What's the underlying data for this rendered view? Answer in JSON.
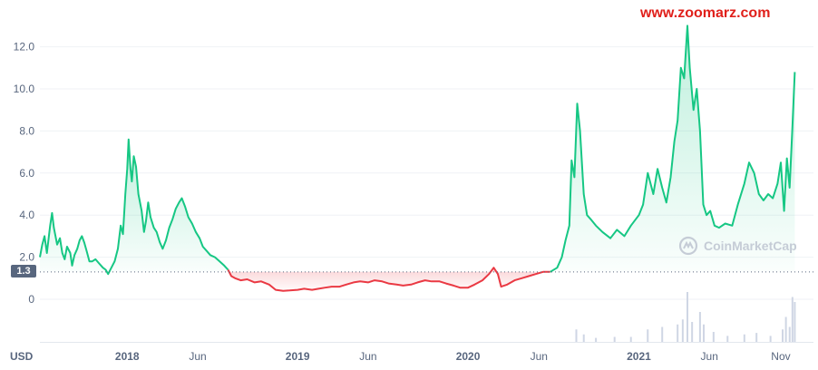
{
  "watermark": "www.zoomarz.com",
  "brand": {
    "name": "CoinMarketCap"
  },
  "currency_label": "USD",
  "reference_badge": "1.3",
  "colors": {
    "up": "#16c784",
    "down": "#ea3943",
    "up_fill": "#16c784",
    "grid": "#eff2f5",
    "ref_line": "#58667e",
    "volume": "#cfd6e4"
  },
  "chart_data": {
    "type": "area",
    "title": "",
    "xlabel": "",
    "ylabel": "",
    "ylim": [
      -2,
      13.5
    ],
    "y_ticks": [
      "0",
      "2.0",
      "4.0",
      "6.0",
      "8.0",
      "10.0",
      "12.0"
    ],
    "y_tick_values": [
      0,
      2,
      4,
      6,
      8,
      10,
      12
    ],
    "x_ticks": [
      {
        "label": "2018",
        "date": "2018-01-01",
        "major": true
      },
      {
        "label": "Jun",
        "date": "2018-06-01",
        "major": false
      },
      {
        "label": "2019",
        "date": "2019-01-01",
        "major": true
      },
      {
        "label": "Jun",
        "date": "2019-06-01",
        "major": false
      },
      {
        "label": "2020",
        "date": "2020-01-01",
        "major": true
      },
      {
        "label": "Jun",
        "date": "2020-06-01",
        "major": false
      },
      {
        "label": "2021",
        "date": "2021-01-01",
        "major": true
      },
      {
        "label": "Jun",
        "date": "2021-06-01",
        "major": false
      },
      {
        "label": "Nov",
        "date": "2021-11-01",
        "major": false
      }
    ],
    "xlim": [
      "2017-06-28",
      "2022-01-10"
    ],
    "reference_value": 1.3,
    "grid": true,
    "series": [
      {
        "points": [
          [
            "2017-06-28",
            2.0
          ],
          [
            "2017-07-03",
            2.6
          ],
          [
            "2017-07-08",
            3.0
          ],
          [
            "2017-07-13",
            2.2
          ],
          [
            "2017-07-20",
            3.5
          ],
          [
            "2017-07-24",
            4.1
          ],
          [
            "2017-07-28",
            3.4
          ],
          [
            "2017-08-04",
            2.6
          ],
          [
            "2017-08-10",
            2.9
          ],
          [
            "2017-08-15",
            2.2
          ],
          [
            "2017-08-20",
            1.9
          ],
          [
            "2017-08-25",
            2.5
          ],
          [
            "2017-09-01",
            2.2
          ],
          [
            "2017-09-05",
            1.6
          ],
          [
            "2017-09-10",
            2.1
          ],
          [
            "2017-09-16",
            2.4
          ],
          [
            "2017-09-21",
            2.8
          ],
          [
            "2017-09-26",
            3.0
          ],
          [
            "2017-10-01",
            2.7
          ],
          [
            "2017-10-06",
            2.3
          ],
          [
            "2017-10-12",
            1.8
          ],
          [
            "2017-10-18",
            1.8
          ],
          [
            "2017-10-25",
            1.9
          ],
          [
            "2017-11-02",
            1.7
          ],
          [
            "2017-11-10",
            1.5
          ],
          [
            "2017-11-16",
            1.4
          ],
          [
            "2017-11-21",
            1.2
          ],
          [
            "2017-11-28",
            1.5
          ],
          [
            "2017-12-05",
            1.8
          ],
          [
            "2017-12-12",
            2.4
          ],
          [
            "2017-12-18",
            3.5
          ],
          [
            "2017-12-23",
            3.1
          ],
          [
            "2017-12-28",
            5.0
          ],
          [
            "2018-01-01",
            6.2
          ],
          [
            "2018-01-04",
            7.6
          ],
          [
            "2018-01-08",
            6.2
          ],
          [
            "2018-01-11",
            5.6
          ],
          [
            "2018-01-15",
            6.8
          ],
          [
            "2018-01-20",
            6.3
          ],
          [
            "2018-01-25",
            5.0
          ],
          [
            "2018-02-01",
            4.2
          ],
          [
            "2018-02-06",
            3.2
          ],
          [
            "2018-02-10",
            3.7
          ],
          [
            "2018-02-15",
            4.6
          ],
          [
            "2018-02-20",
            3.9
          ],
          [
            "2018-02-27",
            3.4
          ],
          [
            "2018-03-05",
            3.2
          ],
          [
            "2018-03-12",
            2.7
          ],
          [
            "2018-03-18",
            2.4
          ],
          [
            "2018-03-25",
            2.8
          ],
          [
            "2018-04-01",
            3.4
          ],
          [
            "2018-04-08",
            3.8
          ],
          [
            "2018-04-15",
            4.3
          ],
          [
            "2018-04-22",
            4.6
          ],
          [
            "2018-04-28",
            4.8
          ],
          [
            "2018-05-05",
            4.4
          ],
          [
            "2018-05-12",
            3.9
          ],
          [
            "2018-05-20",
            3.6
          ],
          [
            "2018-05-28",
            3.2
          ],
          [
            "2018-06-05",
            2.9
          ],
          [
            "2018-06-12",
            2.5
          ],
          [
            "2018-06-20",
            2.3
          ],
          [
            "2018-06-28",
            2.1
          ],
          [
            "2018-07-08",
            2.0
          ],
          [
            "2018-07-18",
            1.8
          ],
          [
            "2018-07-28",
            1.6
          ],
          [
            "2018-08-05",
            1.4
          ]
        ],
        "color": "up"
      },
      {
        "points": [
          [
            "2018-08-05",
            1.4
          ],
          [
            "2018-08-12",
            1.1
          ],
          [
            "2018-08-20",
            1.0
          ],
          [
            "2018-09-01",
            0.9
          ],
          [
            "2018-09-15",
            0.95
          ],
          [
            "2018-10-01",
            0.8
          ],
          [
            "2018-10-15",
            0.85
          ],
          [
            "2018-11-01",
            0.7
          ],
          [
            "2018-11-15",
            0.45
          ],
          [
            "2018-12-01",
            0.4
          ],
          [
            "2018-12-15",
            0.42
          ],
          [
            "2019-01-01",
            0.45
          ],
          [
            "2019-01-15",
            0.5
          ],
          [
            "2019-02-01",
            0.45
          ],
          [
            "2019-02-15",
            0.5
          ],
          [
            "2019-03-01",
            0.55
          ],
          [
            "2019-03-15",
            0.6
          ],
          [
            "2019-04-01",
            0.6
          ],
          [
            "2019-04-15",
            0.7
          ],
          [
            "2019-05-01",
            0.8
          ],
          [
            "2019-05-15",
            0.85
          ],
          [
            "2019-06-01",
            0.8
          ],
          [
            "2019-06-15",
            0.9
          ],
          [
            "2019-07-01",
            0.85
          ],
          [
            "2019-07-15",
            0.75
          ],
          [
            "2019-08-01",
            0.7
          ],
          [
            "2019-08-15",
            0.65
          ],
          [
            "2019-09-01",
            0.7
          ],
          [
            "2019-09-15",
            0.8
          ],
          [
            "2019-10-01",
            0.9
          ],
          [
            "2019-10-15",
            0.85
          ],
          [
            "2019-11-01",
            0.85
          ],
          [
            "2019-11-15",
            0.75
          ],
          [
            "2019-12-01",
            0.65
          ],
          [
            "2019-12-15",
            0.55
          ],
          [
            "2020-01-01",
            0.55
          ],
          [
            "2020-01-15",
            0.7
          ],
          [
            "2020-02-01",
            0.9
          ],
          [
            "2020-02-15",
            1.2
          ],
          [
            "2020-02-25",
            1.5
          ],
          [
            "2020-03-05",
            1.2
          ],
          [
            "2020-03-12",
            0.6
          ],
          [
            "2020-03-25",
            0.7
          ],
          [
            "2020-04-10",
            0.9
          ],
          [
            "2020-04-25",
            1.0
          ],
          [
            "2020-05-10",
            1.1
          ],
          [
            "2020-05-25",
            1.2
          ],
          [
            "2020-06-10",
            1.3
          ],
          [
            "2020-06-25",
            1.3
          ]
        ],
        "color": "down"
      },
      {
        "points": [
          [
            "2020-06-25",
            1.3
          ],
          [
            "2020-07-10",
            1.5
          ],
          [
            "2020-07-20",
            2.0
          ],
          [
            "2020-07-28",
            2.8
          ],
          [
            "2020-08-05",
            3.5
          ],
          [
            "2020-08-10",
            6.6
          ],
          [
            "2020-08-16",
            5.8
          ],
          [
            "2020-08-22",
            9.3
          ],
          [
            "2020-08-28",
            8.0
          ],
          [
            "2020-09-05",
            5.0
          ],
          [
            "2020-09-12",
            4.0
          ],
          [
            "2020-09-20",
            3.8
          ],
          [
            "2020-10-01",
            3.5
          ],
          [
            "2020-10-15",
            3.2
          ],
          [
            "2020-11-01",
            2.9
          ],
          [
            "2020-11-15",
            3.3
          ],
          [
            "2020-12-01",
            3.0
          ],
          [
            "2020-12-15",
            3.5
          ],
          [
            "2021-01-01",
            4.0
          ],
          [
            "2021-01-10",
            4.5
          ],
          [
            "2021-01-20",
            6.0
          ],
          [
            "2021-02-01",
            5.0
          ],
          [
            "2021-02-10",
            6.2
          ],
          [
            "2021-02-20",
            5.3
          ],
          [
            "2021-03-01",
            4.6
          ],
          [
            "2021-03-10",
            5.8
          ],
          [
            "2021-03-18",
            7.5
          ],
          [
            "2021-03-25",
            8.5
          ],
          [
            "2021-04-01",
            11.0
          ],
          [
            "2021-04-08",
            10.5
          ],
          [
            "2021-04-15",
            13.0
          ],
          [
            "2021-04-20",
            11.0
          ],
          [
            "2021-04-28",
            9.0
          ],
          [
            "2021-05-05",
            10.0
          ],
          [
            "2021-05-12",
            8.0
          ],
          [
            "2021-05-19",
            4.5
          ],
          [
            "2021-05-26",
            4.0
          ],
          [
            "2021-06-03",
            4.2
          ],
          [
            "2021-06-12",
            3.5
          ],
          [
            "2021-06-22",
            3.4
          ],
          [
            "2021-07-05",
            3.6
          ],
          [
            "2021-07-20",
            3.5
          ],
          [
            "2021-08-01",
            4.5
          ],
          [
            "2021-08-15",
            5.5
          ],
          [
            "2021-08-25",
            6.5
          ],
          [
            "2021-09-05",
            6.0
          ],
          [
            "2021-09-15",
            5.0
          ],
          [
            "2021-09-25",
            4.7
          ],
          [
            "2021-10-05",
            5.0
          ],
          [
            "2021-10-15",
            4.8
          ],
          [
            "2021-10-25",
            5.5
          ],
          [
            "2021-11-01",
            6.5
          ],
          [
            "2021-11-08",
            4.2
          ],
          [
            "2021-11-14",
            6.7
          ],
          [
            "2021-11-20",
            5.3
          ],
          [
            "2021-11-26",
            8.2
          ],
          [
            "2021-12-01",
            10.8
          ]
        ],
        "color": "up"
      }
    ],
    "volume": [
      [
        "2020-08-20",
        0.25
      ],
      [
        "2020-09-05",
        0.15
      ],
      [
        "2020-10-01",
        0.08
      ],
      [
        "2020-11-10",
        0.1
      ],
      [
        "2020-12-15",
        0.1
      ],
      [
        "2021-01-20",
        0.25
      ],
      [
        "2021-02-20",
        0.3
      ],
      [
        "2021-03-25",
        0.35
      ],
      [
        "2021-04-05",
        0.45
      ],
      [
        "2021-04-15",
        1.0
      ],
      [
        "2021-04-25",
        0.4
      ],
      [
        "2021-05-12",
        0.6
      ],
      [
        "2021-05-20",
        0.35
      ],
      [
        "2021-06-10",
        0.2
      ],
      [
        "2021-07-10",
        0.12
      ],
      [
        "2021-08-15",
        0.15
      ],
      [
        "2021-09-10",
        0.18
      ],
      [
        "2021-10-10",
        0.12
      ],
      [
        "2021-11-05",
        0.25
      ],
      [
        "2021-11-12",
        0.5
      ],
      [
        "2021-11-20",
        0.3
      ],
      [
        "2021-11-26",
        0.9
      ],
      [
        "2021-12-01",
        0.8
      ]
    ]
  }
}
